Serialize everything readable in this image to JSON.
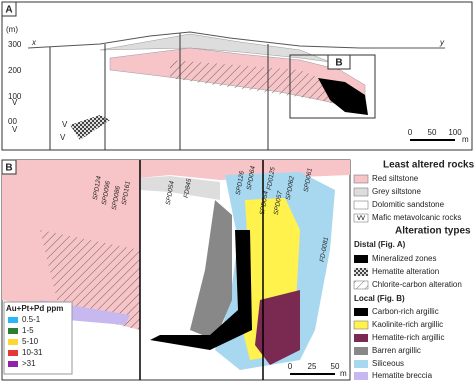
{
  "panel_a": {
    "label": "A",
    "unit": "(m)",
    "left_end": "x",
    "right_end": "y",
    "elevations": [
      "300",
      "200",
      "100",
      "00"
    ],
    "volcanic_marks": [
      "V",
      "V",
      "V",
      "V"
    ],
    "inset_label": "B",
    "scale": {
      "ticks": [
        "0",
        "50",
        "100"
      ],
      "unit": "m"
    }
  },
  "panel_b": {
    "label": "B",
    "drill_holes": [
      "SPD124",
      "SPD096",
      "SPD086",
      "SPD161",
      "SPD054",
      "FD845",
      "SPD126",
      "SPD064",
      "FD0125",
      "SPD054",
      "SPD057",
      "SPD062",
      "SPD061",
      "FD-0081"
    ],
    "grade_legend": {
      "title": "Au+Pt+Pd ppm",
      "classes": [
        "0.5-1",
        "1-5",
        "5-10",
        "10-31",
        ">31"
      ]
    },
    "scale": {
      "ticks": [
        "0",
        "25",
        "50"
      ],
      "unit": "m"
    }
  },
  "legend": {
    "least_altered": {
      "title": "Least altered rocks",
      "items": [
        "Red siltstone",
        "Grey siltstone",
        "Dolomitic sandstone",
        "Mafic metavolcanic rocks"
      ]
    },
    "alteration": {
      "title": "Alteration types",
      "distal": {
        "title": "Distal (Fig. A)",
        "items": [
          "Mineralized zones",
          "Hematite alteration",
          "Chlorite-carbon alteration"
        ]
      },
      "local": {
        "title": "Local (Fig. B)",
        "items": [
          "Carbon-rich argillic",
          "Kaolinite-rich argillic",
          "Hematite-rich argillic",
          "Barren  argillic",
          "Siliceous",
          "Hematite breccia"
        ]
      }
    }
  }
}
